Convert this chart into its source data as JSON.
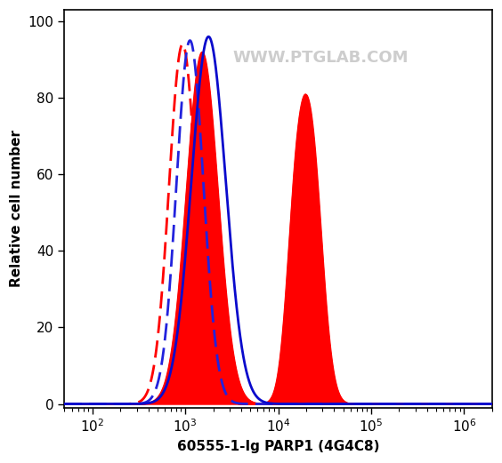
{
  "xlabel": "60555-1-Ig PARP1 (4G4C8)",
  "ylabel": "Relative cell number",
  "xlim": [
    50,
    2000000
  ],
  "ylim": [
    -1,
    103
  ],
  "yticks": [
    0,
    20,
    40,
    60,
    80,
    100
  ],
  "xtick_positions": [
    100,
    1000,
    10000,
    100000,
    1000000
  ],
  "watermark": "WWW.PTGLAB.COM",
  "bg_color": "#ffffff",
  "red_fill_color": "#ff0000",
  "blue_solid_color": "#0a0acc",
  "red_dashed_color": "#ff0000",
  "blue_dashed_color": "#2222dd",
  "red_p1_peak_log": 3.18,
  "red_p1_sigma_log": 0.17,
  "red_p1_height": 92,
  "red_p2_peak_log": 4.18,
  "red_p2_sigma_log": 0.1,
  "red_p2_height": 40,
  "red_p3_peak_log": 4.35,
  "red_p3_sigma_log": 0.12,
  "red_p3_height": 67,
  "blue_solid_peak_log": 3.25,
  "blue_solid_sigma_log": 0.185,
  "blue_solid_height": 96,
  "blue_dash_peak_log": 3.05,
  "blue_dash_sigma_log": 0.145,
  "blue_dash_height": 95,
  "red_dash_peak_log": 2.97,
  "red_dash_sigma_log": 0.145,
  "red_dash_height": 94
}
